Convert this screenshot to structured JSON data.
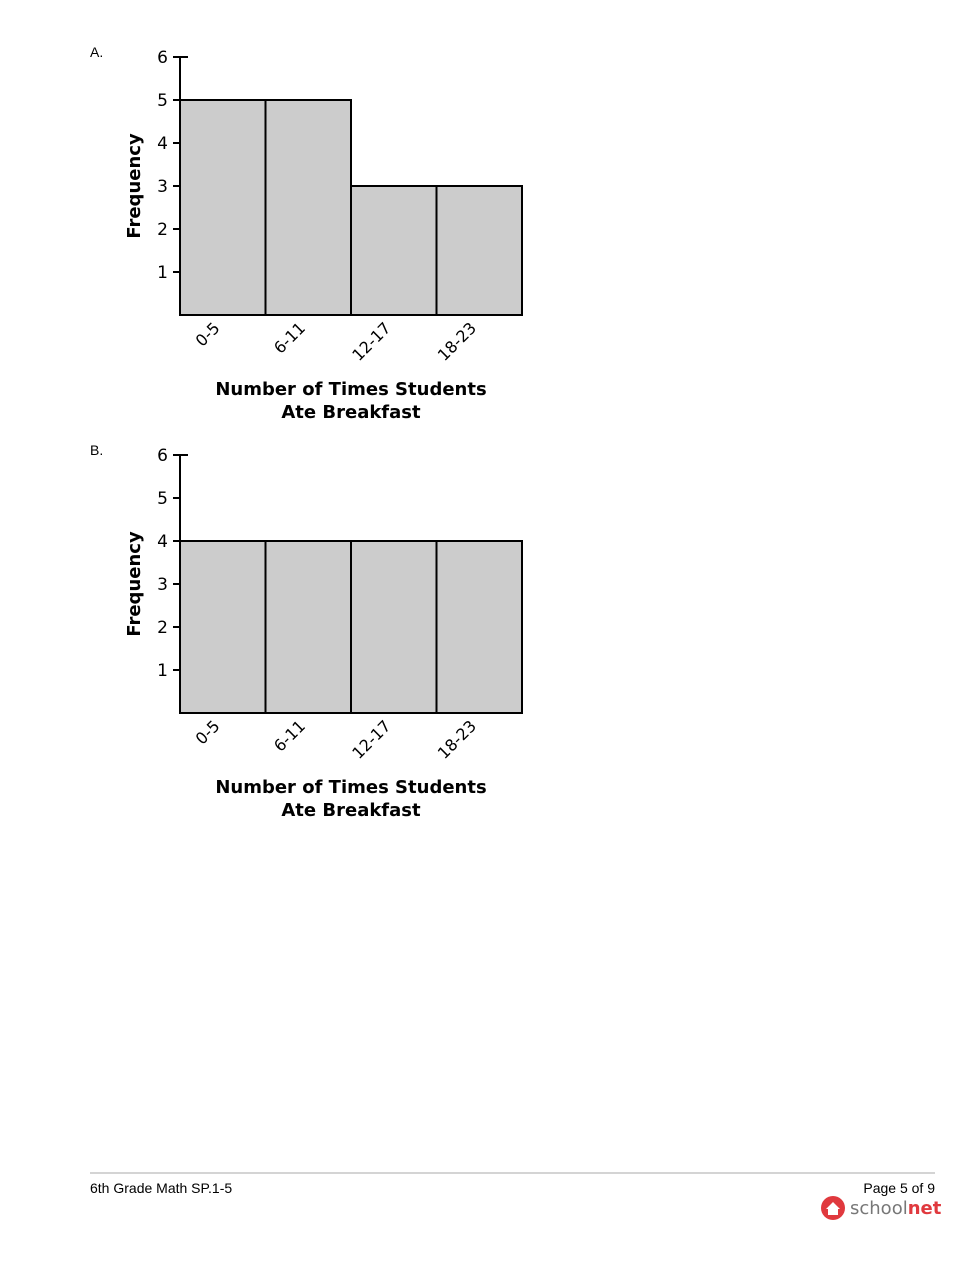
{
  "chart_data": [
    {
      "type": "bar",
      "ylabel": "Frequency",
      "xlabel": [
        "Number of Times Students",
        "Ate Breakfast"
      ],
      "categories": [
        "0-5",
        "6-11",
        "12-17",
        "18-23"
      ],
      "values": [
        5,
        5,
        3,
        3
      ],
      "color": "#cccccc",
      "ylim": [
        0,
        6
      ],
      "yticks": [
        1,
        2,
        3,
        4,
        5,
        6
      ]
    },
    {
      "type": "bar",
      "ylabel": "Frequency",
      "xlabel": [
        "Number of Times Students",
        "Ate Breakfast"
      ],
      "categories": [
        "0-5",
        "6-11",
        "12-17",
        "18-23"
      ],
      "values": [
        4,
        4,
        4,
        4
      ],
      "color": "#cccccc",
      "ylim": [
        0,
        6
      ],
      "yticks": [
        1,
        2,
        3,
        4,
        5,
        6
      ]
    }
  ],
  "options": [
    "A.",
    "B."
  ],
  "footer": {
    "left": "6th Grade Math SP.1-5",
    "page": "Page 5 of 9",
    "logo": [
      "school",
      "net"
    ]
  }
}
